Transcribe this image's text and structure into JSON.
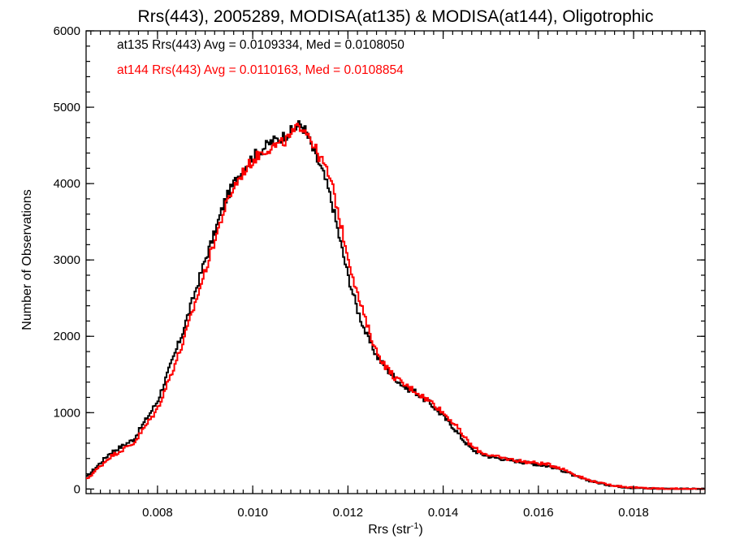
{
  "chart_data": {
    "type": "line",
    "step": true,
    "title": "Rrs(443), 2005289, MODISA(at135) & MODISA(at144), Oligotrophic",
    "xlabel_main": "Rrs (str",
    "xlabel_sup": "-1",
    "xlabel_end": ")",
    "ylabel": "Number of Observations",
    "xlim": [
      0.0065,
      0.0195
    ],
    "ylim": [
      -60,
      6000
    ],
    "grid": false,
    "x_ticks": [
      {
        "value": 0.008,
        "label": "0.008"
      },
      {
        "value": 0.01,
        "label": "0.010"
      },
      {
        "value": 0.012,
        "label": "0.012"
      },
      {
        "value": 0.014,
        "label": "0.014"
      },
      {
        "value": 0.016,
        "label": "0.016"
      },
      {
        "value": 0.018,
        "label": "0.018"
      }
    ],
    "y_ticks": [
      {
        "value": 0,
        "label": "0"
      },
      {
        "value": 1000,
        "label": "1000"
      },
      {
        "value": 2000,
        "label": "2000"
      },
      {
        "value": 3000,
        "label": "3000"
      },
      {
        "value": 4000,
        "label": "4000"
      },
      {
        "value": 5000,
        "label": "5000"
      },
      {
        "value": 6000,
        "label": "6000"
      }
    ],
    "annotations": [
      {
        "text": "at135 Rrs(443) Avg = 0.0109334, Med = 0.0108050",
        "color": "#000000"
      },
      {
        "text": "at144 Rrs(443) Avg = 0.0110163, Med = 0.0108854",
        "color": "#ff0000"
      }
    ],
    "series": [
      {
        "name": "at135",
        "color": "#000000",
        "x": [
          0.0065,
          0.007,
          0.0075,
          0.008,
          0.0085,
          0.0088,
          0.009,
          0.0092,
          0.0094,
          0.0096,
          0.0098,
          0.01,
          0.0102,
          0.0104,
          0.0106,
          0.0108,
          0.0109,
          0.011,
          0.0111,
          0.0112,
          0.0113,
          0.0114,
          0.0115,
          0.0116,
          0.0117,
          0.0118,
          0.012,
          0.0122,
          0.0124,
          0.0126,
          0.0128,
          0.013,
          0.0132,
          0.0134,
          0.0136,
          0.0138,
          0.014,
          0.0142,
          0.0144,
          0.0146,
          0.0148,
          0.015,
          0.0152,
          0.0154,
          0.0156,
          0.0158,
          0.016,
          0.0162,
          0.0164,
          0.0166,
          0.0168,
          0.017,
          0.0172,
          0.0174,
          0.0176,
          0.0178,
          0.018,
          0.0185,
          0.019,
          0.0195
        ],
        "values": [
          150,
          470,
          650,
          1150,
          2000,
          2600,
          3000,
          3350,
          3750,
          4000,
          4200,
          4350,
          4450,
          4550,
          4600,
          4680,
          4730,
          4780,
          4700,
          4550,
          4380,
          4250,
          4100,
          3900,
          3650,
          3350,
          2800,
          2350,
          2000,
          1750,
          1580,
          1450,
          1330,
          1280,
          1180,
          1080,
          950,
          820,
          660,
          520,
          460,
          420,
          400,
          380,
          360,
          340,
          320,
          300,
          270,
          220,
          160,
          120,
          90,
          60,
          40,
          25,
          15,
          5,
          0,
          0
        ]
      },
      {
        "name": "at144",
        "color": "#ff0000",
        "x": [
          0.0065,
          0.007,
          0.0075,
          0.008,
          0.0085,
          0.0088,
          0.009,
          0.0092,
          0.0094,
          0.0096,
          0.0098,
          0.01,
          0.0102,
          0.0104,
          0.0106,
          0.0108,
          0.0109,
          0.011,
          0.0111,
          0.0112,
          0.0113,
          0.0114,
          0.0115,
          0.0116,
          0.0117,
          0.0118,
          0.012,
          0.0122,
          0.0124,
          0.0126,
          0.0128,
          0.013,
          0.0132,
          0.0134,
          0.0136,
          0.0138,
          0.014,
          0.0142,
          0.0144,
          0.0146,
          0.0148,
          0.015,
          0.0152,
          0.0154,
          0.0156,
          0.0158,
          0.016,
          0.0162,
          0.0164,
          0.0166,
          0.0168,
          0.017,
          0.0172,
          0.0174,
          0.0176,
          0.0178,
          0.018,
          0.0185,
          0.019,
          0.0195
        ],
        "values": [
          120,
          420,
          600,
          1050,
          1850,
          2450,
          2850,
          3250,
          3650,
          3950,
          4150,
          4300,
          4420,
          4480,
          4520,
          4620,
          4700,
          4760,
          4720,
          4620,
          4470,
          4350,
          4250,
          4100,
          3900,
          3600,
          3050,
          2550,
          2150,
          1800,
          1600,
          1450,
          1360,
          1290,
          1200,
          1120,
          1000,
          880,
          720,
          560,
          480,
          440,
          410,
          390,
          370,
          350,
          340,
          320,
          290,
          240,
          180,
          130,
          95,
          65,
          45,
          30,
          18,
          6,
          0,
          0
        ]
      }
    ]
  }
}
